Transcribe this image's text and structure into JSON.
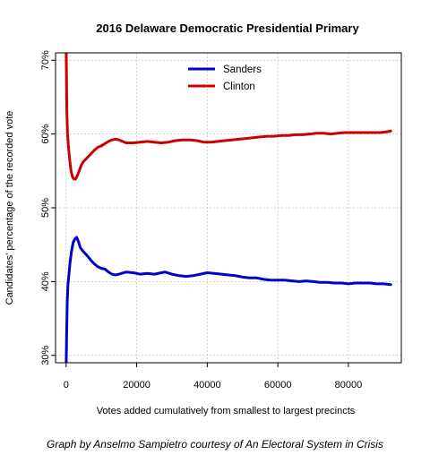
{
  "chart_data": {
    "type": "line",
    "title": "2016 Delaware Democratic Presidential Primary",
    "xlabel": "Votes added cumulatively from smallest to largest precincts",
    "ylabel": "Candidates' percentage of the recorded vote",
    "xlim": [
      -3000,
      95000
    ],
    "ylim": [
      29,
      71
    ],
    "x_ticks": [
      0,
      20000,
      40000,
      60000,
      80000
    ],
    "y_ticks": [
      30,
      40,
      50,
      60,
      70
    ],
    "y_tick_labels": [
      "30%",
      "40%",
      "50%",
      "60%",
      "70%"
    ],
    "grid": true,
    "legend_position": "top-center",
    "series": [
      {
        "name": "Sanders",
        "color": "#0000cc",
        "points": [
          [
            0,
            28
          ],
          [
            150,
            33
          ],
          [
            300,
            37
          ],
          [
            500,
            39.5
          ],
          [
            800,
            41
          ],
          [
            1100,
            42.5
          ],
          [
            1500,
            44
          ],
          [
            2000,
            45.3
          ],
          [
            2500,
            45.8
          ],
          [
            3000,
            46
          ],
          [
            3500,
            45.4
          ],
          [
            4000,
            44.6
          ],
          [
            5000,
            44
          ],
          [
            6000,
            43.5
          ],
          [
            7000,
            42.9
          ],
          [
            8000,
            42.4
          ],
          [
            9000,
            42
          ],
          [
            10000,
            41.8
          ],
          [
            11000,
            41.7
          ],
          [
            12000,
            41.3
          ],
          [
            13000,
            41
          ],
          [
            14000,
            40.9
          ],
          [
            15000,
            41
          ],
          [
            17000,
            41.3
          ],
          [
            19000,
            41.2
          ],
          [
            21000,
            41
          ],
          [
            23000,
            41.1
          ],
          [
            25000,
            41
          ],
          [
            27000,
            41.2
          ],
          [
            28000,
            41.3
          ],
          [
            30000,
            41
          ],
          [
            32000,
            40.8
          ],
          [
            34000,
            40.7
          ],
          [
            36000,
            40.8
          ],
          [
            38000,
            41
          ],
          [
            40000,
            41.2
          ],
          [
            42000,
            41.1
          ],
          [
            44000,
            41
          ],
          [
            46000,
            40.9
          ],
          [
            48000,
            40.8
          ],
          [
            50000,
            40.6
          ],
          [
            52000,
            40.5
          ],
          [
            54000,
            40.5
          ],
          [
            56000,
            40.3
          ],
          [
            58000,
            40.2
          ],
          [
            60000,
            40.2
          ],
          [
            62000,
            40.2
          ],
          [
            64000,
            40.1
          ],
          [
            66000,
            40
          ],
          [
            68000,
            40.1
          ],
          [
            70000,
            40
          ],
          [
            72000,
            39.9
          ],
          [
            74000,
            39.9
          ],
          [
            76000,
            39.8
          ],
          [
            78000,
            39.8
          ],
          [
            80000,
            39.7
          ],
          [
            82000,
            39.8
          ],
          [
            84000,
            39.8
          ],
          [
            86000,
            39.8
          ],
          [
            88000,
            39.7
          ],
          [
            90000,
            39.7
          ],
          [
            92000,
            39.6
          ]
        ]
      },
      {
        "name": "Clinton",
        "color": "#cc0000",
        "points": [
          [
            0,
            72
          ],
          [
            100,
            68
          ],
          [
            200,
            63
          ],
          [
            400,
            60
          ],
          [
            700,
            58
          ],
          [
            1000,
            56.5
          ],
          [
            1400,
            55
          ],
          [
            1800,
            54.2
          ],
          [
            2200,
            53.9
          ],
          [
            2700,
            53.9
          ],
          [
            3200,
            54.4
          ],
          [
            3700,
            55
          ],
          [
            4300,
            55.8
          ],
          [
            5000,
            56.3
          ],
          [
            6000,
            56.8
          ],
          [
            7000,
            57.3
          ],
          [
            8000,
            57.8
          ],
          [
            9000,
            58.2
          ],
          [
            10000,
            58.4
          ],
          [
            11000,
            58.7
          ],
          [
            12000,
            59
          ],
          [
            13000,
            59.2
          ],
          [
            14000,
            59.3
          ],
          [
            15000,
            59.2
          ],
          [
            17000,
            58.8
          ],
          [
            19000,
            58.8
          ],
          [
            21000,
            58.9
          ],
          [
            23000,
            59
          ],
          [
            25000,
            58.9
          ],
          [
            27000,
            58.8
          ],
          [
            29000,
            58.9
          ],
          [
            31000,
            59.1
          ],
          [
            33000,
            59.2
          ],
          [
            35000,
            59.2
          ],
          [
            37000,
            59.1
          ],
          [
            39000,
            58.9
          ],
          [
            41000,
            58.9
          ],
          [
            43000,
            59
          ],
          [
            45000,
            59.1
          ],
          [
            47000,
            59.2
          ],
          [
            49000,
            59.3
          ],
          [
            51000,
            59.4
          ],
          [
            53000,
            59.5
          ],
          [
            55000,
            59.6
          ],
          [
            57000,
            59.7
          ],
          [
            59000,
            59.7
          ],
          [
            61000,
            59.8
          ],
          [
            63000,
            59.8
          ],
          [
            65000,
            59.9
          ],
          [
            67000,
            59.9
          ],
          [
            69000,
            60
          ],
          [
            71000,
            60.1
          ],
          [
            73000,
            60.1
          ],
          [
            75000,
            60
          ],
          [
            77000,
            60.1
          ],
          [
            79000,
            60.2
          ],
          [
            81000,
            60.2
          ],
          [
            83000,
            60.2
          ],
          [
            85000,
            60.2
          ],
          [
            87000,
            60.2
          ],
          [
            89000,
            60.2
          ],
          [
            91000,
            60.3
          ],
          [
            92000,
            60.4
          ]
        ]
      }
    ]
  },
  "credit": "Graph by Anselmo Sampietro courtesy of An Electoral System in Crisis"
}
